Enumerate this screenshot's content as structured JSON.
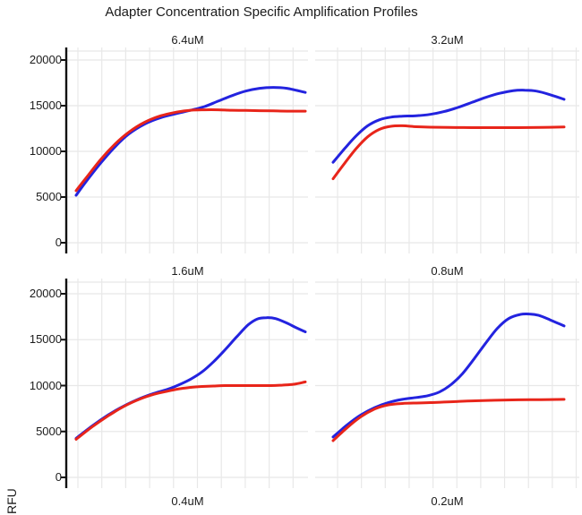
{
  "title": "Adapter Concentration Specific Amplification Profiles",
  "ylabel": "RFU",
  "colors": {
    "blue": "#2323df",
    "red": "#e8251a",
    "grid": "#e8e8e8",
    "axis": "#111111",
    "text": "#1b1b1b",
    "background": "#ffffff"
  },
  "chart_data": {
    "type": "line",
    "title": "Adapter Concentration Specific Amplification Profiles",
    "xlabel": "",
    "ylabel": "RFU",
    "ylim": [
      0,
      21300
    ],
    "yticks": [
      0,
      5000,
      10000,
      15000,
      20000
    ],
    "grid": true,
    "legend_position": "none",
    "facet_grid": {
      "rows": 3,
      "cols": 2,
      "third_row_visible": "strip labels only (cut off at image bottom)"
    },
    "facets": [
      {
        "label": "6.4uM",
        "row": 0,
        "col": 0,
        "series": [
          {
            "name": "blue-curve",
            "color": "blue",
            "points": [
              [
                0,
                5200
              ],
              [
                0.05,
                6900
              ],
              [
                0.11,
                8800
              ],
              [
                0.17,
                10500
              ],
              [
                0.23,
                11900
              ],
              [
                0.3,
                13000
              ],
              [
                0.37,
                13700
              ],
              [
                0.44,
                14150
              ],
              [
                0.5,
                14500
              ],
              [
                0.56,
                14900
              ],
              [
                0.62,
                15500
              ],
              [
                0.68,
                16100
              ],
              [
                0.74,
                16600
              ],
              [
                0.8,
                16900
              ],
              [
                0.86,
                17000
              ],
              [
                0.92,
                16900
              ],
              [
                1,
                16450
              ]
            ]
          },
          {
            "name": "red-curve",
            "color": "red",
            "points": [
              [
                0,
                5700
              ],
              [
                0.05,
                7300
              ],
              [
                0.11,
                9200
              ],
              [
                0.17,
                10800
              ],
              [
                0.23,
                12100
              ],
              [
                0.3,
                13200
              ],
              [
                0.37,
                13900
              ],
              [
                0.44,
                14300
              ],
              [
                0.5,
                14500
              ],
              [
                0.56,
                14550
              ],
              [
                0.62,
                14550
              ],
              [
                0.68,
                14500
              ],
              [
                0.74,
                14480
              ],
              [
                0.8,
                14450
              ],
              [
                0.86,
                14430
              ],
              [
                0.92,
                14400
              ],
              [
                1,
                14400
              ]
            ]
          }
        ]
      },
      {
        "label": "3.2uM",
        "row": 0,
        "col": 1,
        "series": [
          {
            "name": "blue-curve",
            "color": "blue",
            "points": [
              [
                0,
                8800
              ],
              [
                0.05,
                10300
              ],
              [
                0.1,
                11700
              ],
              [
                0.15,
                12800
              ],
              [
                0.2,
                13450
              ],
              [
                0.25,
                13750
              ],
              [
                0.3,
                13850
              ],
              [
                0.36,
                13900
              ],
              [
                0.42,
                14050
              ],
              [
                0.48,
                14350
              ],
              [
                0.54,
                14800
              ],
              [
                0.6,
                15350
              ],
              [
                0.66,
                15900
              ],
              [
                0.72,
                16350
              ],
              [
                0.78,
                16650
              ],
              [
                0.83,
                16700
              ],
              [
                0.88,
                16600
              ],
              [
                0.94,
                16200
              ],
              [
                1,
                15700
              ]
            ]
          },
          {
            "name": "red-curve",
            "color": "red",
            "points": [
              [
                0,
                7000
              ],
              [
                0.05,
                8700
              ],
              [
                0.1,
                10300
              ],
              [
                0.15,
                11600
              ],
              [
                0.2,
                12400
              ],
              [
                0.25,
                12750
              ],
              [
                0.3,
                12800
              ],
              [
                0.36,
                12700
              ],
              [
                0.42,
                12650
              ],
              [
                0.5,
                12620
              ],
              [
                0.6,
                12600
              ],
              [
                0.7,
                12600
              ],
              [
                0.8,
                12600
              ],
              [
                0.9,
                12620
              ],
              [
                1,
                12680
              ]
            ]
          }
        ]
      },
      {
        "label": "1.6uM",
        "row": 1,
        "col": 0,
        "series": [
          {
            "name": "blue-curve",
            "color": "blue",
            "points": [
              [
                0,
                4250
              ],
              [
                0.07,
                5600
              ],
              [
                0.14,
                6800
              ],
              [
                0.21,
                7800
              ],
              [
                0.28,
                8600
              ],
              [
                0.34,
                9150
              ],
              [
                0.4,
                9600
              ],
              [
                0.45,
                10100
              ],
              [
                0.5,
                10700
              ],
              [
                0.55,
                11500
              ],
              [
                0.6,
                12600
              ],
              [
                0.65,
                13900
              ],
              [
                0.7,
                15300
              ],
              [
                0.75,
                16600
              ],
              [
                0.79,
                17250
              ],
              [
                0.83,
                17400
              ],
              [
                0.87,
                17300
              ],
              [
                0.92,
                16800
              ],
              [
                0.96,
                16300
              ],
              [
                1,
                15850
              ]
            ]
          },
          {
            "name": "red-curve",
            "color": "red",
            "points": [
              [
                0,
                4150
              ],
              [
                0.07,
                5500
              ],
              [
                0.14,
                6700
              ],
              [
                0.21,
                7750
              ],
              [
                0.28,
                8550
              ],
              [
                0.34,
                9050
              ],
              [
                0.4,
                9400
              ],
              [
                0.45,
                9650
              ],
              [
                0.5,
                9800
              ],
              [
                0.55,
                9900
              ],
              [
                0.6,
                9950
              ],
              [
                0.65,
                10000
              ],
              [
                0.75,
                10000
              ],
              [
                0.85,
                10000
              ],
              [
                0.9,
                10050
              ],
              [
                0.95,
                10150
              ],
              [
                1,
                10400
              ]
            ]
          }
        ]
      },
      {
        "label": "0.8uM",
        "row": 1,
        "col": 1,
        "series": [
          {
            "name": "blue-curve",
            "color": "blue",
            "points": [
              [
                0,
                4400
              ],
              [
                0.06,
                5700
              ],
              [
                0.12,
                6800
              ],
              [
                0.18,
                7600
              ],
              [
                0.24,
                8150
              ],
              [
                0.3,
                8500
              ],
              [
                0.36,
                8700
              ],
              [
                0.41,
                8900
              ],
              [
                0.46,
                9300
              ],
              [
                0.51,
                10100
              ],
              [
                0.56,
                11300
              ],
              [
                0.61,
                12900
              ],
              [
                0.66,
                14600
              ],
              [
                0.71,
                16200
              ],
              [
                0.76,
                17300
              ],
              [
                0.81,
                17750
              ],
              [
                0.85,
                17800
              ],
              [
                0.89,
                17650
              ],
              [
                0.94,
                17150
              ],
              [
                1,
                16500
              ]
            ]
          },
          {
            "name": "red-curve",
            "color": "red",
            "points": [
              [
                0,
                4000
              ],
              [
                0.06,
                5400
              ],
              [
                0.12,
                6600
              ],
              [
                0.18,
                7450
              ],
              [
                0.24,
                7900
              ],
              [
                0.3,
                8050
              ],
              [
                0.36,
                8100
              ],
              [
                0.42,
                8150
              ],
              [
                0.48,
                8200
              ],
              [
                0.54,
                8270
              ],
              [
                0.6,
                8330
              ],
              [
                0.7,
                8400
              ],
              [
                0.8,
                8450
              ],
              [
                0.9,
                8470
              ],
              [
                1,
                8500
              ]
            ]
          }
        ]
      },
      {
        "label": "0.4uM",
        "row": 2,
        "col": 0,
        "cut_off": true,
        "series": []
      },
      {
        "label": "0.2uM",
        "row": 2,
        "col": 1,
        "cut_off": true,
        "series": []
      }
    ]
  }
}
